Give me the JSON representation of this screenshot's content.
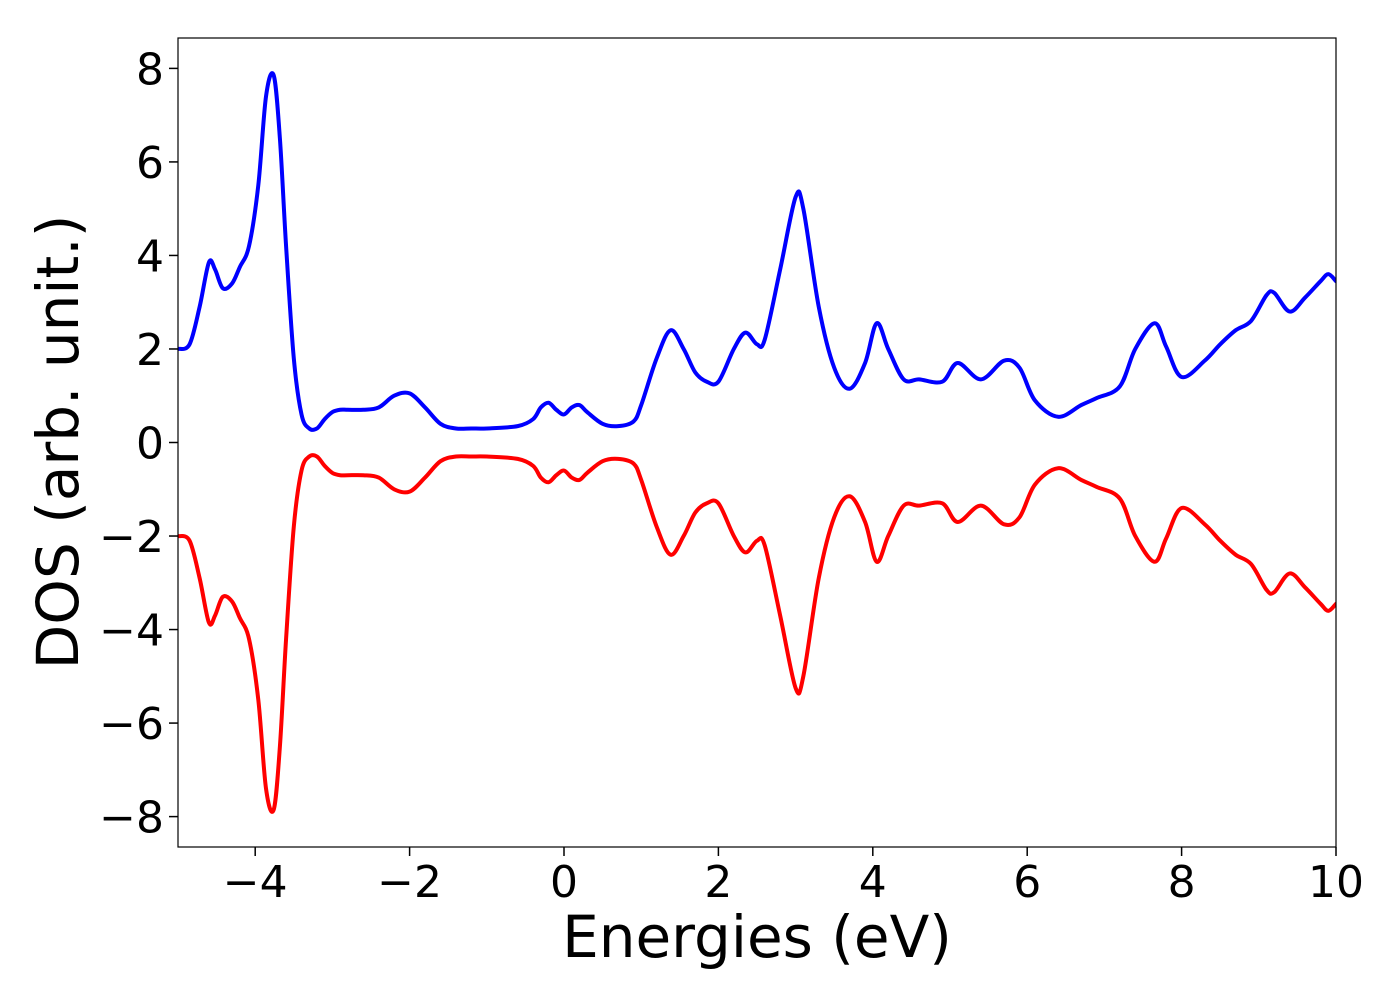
{
  "chart_data": {
    "type": "line",
    "title": "",
    "xlabel": "Energies (eV)",
    "ylabel": "DOS (arb. unit.)",
    "xlim": [
      -5,
      10
    ],
    "ylim": [
      -8.65,
      8.65
    ],
    "grid": false,
    "legend": "none",
    "x_ticks": [
      {
        "value": -4,
        "label": "−4"
      },
      {
        "value": -2,
        "label": "−2"
      },
      {
        "value": 0,
        "label": "0"
      },
      {
        "value": 2,
        "label": "2"
      },
      {
        "value": 4,
        "label": "4"
      },
      {
        "value": 6,
        "label": "6"
      },
      {
        "value": 8,
        "label": "8"
      },
      {
        "value": 10,
        "label": "10"
      }
    ],
    "y_ticks": [
      {
        "value": 8,
        "label": "8"
      },
      {
        "value": 6,
        "label": "6"
      },
      {
        "value": 4,
        "label": "4"
      },
      {
        "value": 2,
        "label": "2"
      },
      {
        "value": 0,
        "label": "0"
      },
      {
        "value": -2,
        "label": "−2"
      },
      {
        "value": -4,
        "label": "−4"
      },
      {
        "value": -6,
        "label": "−6"
      },
      {
        "value": -8,
        "label": "−8"
      }
    ],
    "series": [
      {
        "color": "#0000ff",
        "x": [
          -5.0,
          -4.85,
          -4.72,
          -4.6,
          -4.52,
          -4.42,
          -4.3,
          -4.2,
          -4.08,
          -3.96,
          -3.86,
          -3.76,
          -3.68,
          -3.6,
          -3.5,
          -3.4,
          -3.3,
          -3.2,
          -3.1,
          -3.0,
          -2.9,
          -2.8,
          -2.6,
          -2.4,
          -2.2,
          -2.0,
          -1.8,
          -1.6,
          -1.4,
          -1.2,
          -1.0,
          -0.6,
          -0.4,
          -0.3,
          -0.2,
          -0.1,
          0.0,
          0.1,
          0.2,
          0.3,
          0.5,
          0.7,
          0.9,
          1.0,
          1.2,
          1.38,
          1.55,
          1.7,
          1.85,
          2.0,
          2.2,
          2.35,
          2.5,
          2.6,
          2.8,
          3.0,
          3.1,
          3.3,
          3.5,
          3.7,
          3.9,
          4.05,
          4.2,
          4.4,
          4.6,
          4.9,
          5.1,
          5.4,
          5.7,
          5.9,
          6.1,
          6.4,
          6.7,
          6.9,
          7.2,
          7.4,
          7.65,
          7.8,
          8.0,
          8.3,
          8.5,
          8.7,
          8.9,
          9.1,
          9.2,
          9.4,
          9.6,
          9.8,
          9.9,
          10.0
        ],
        "values": [
          2.0,
          2.1,
          2.9,
          3.85,
          3.7,
          3.3,
          3.4,
          3.75,
          4.2,
          5.5,
          7.4,
          7.85,
          6.5,
          4.2,
          1.8,
          0.6,
          0.3,
          0.3,
          0.5,
          0.65,
          0.7,
          0.7,
          0.7,
          0.75,
          1.0,
          1.05,
          0.75,
          0.4,
          0.3,
          0.3,
          0.3,
          0.35,
          0.5,
          0.75,
          0.85,
          0.7,
          0.6,
          0.75,
          0.8,
          0.65,
          0.4,
          0.35,
          0.45,
          0.8,
          1.8,
          2.4,
          2.0,
          1.5,
          1.3,
          1.3,
          2.0,
          2.35,
          2.1,
          2.2,
          3.7,
          5.25,
          5.0,
          2.9,
          1.6,
          1.15,
          1.7,
          2.55,
          2.0,
          1.35,
          1.35,
          1.3,
          1.7,
          1.35,
          1.75,
          1.6,
          0.9,
          0.55,
          0.8,
          0.95,
          1.2,
          2.0,
          2.55,
          2.05,
          1.4,
          1.75,
          2.1,
          2.4,
          2.6,
          3.15,
          3.2,
          2.8,
          3.1,
          3.45,
          3.6,
          3.45
        ]
      },
      {
        "color": "#ff0000",
        "x": [
          -5.0,
          -4.85,
          -4.72,
          -4.6,
          -4.52,
          -4.42,
          -4.3,
          -4.2,
          -4.08,
          -3.96,
          -3.86,
          -3.76,
          -3.68,
          -3.6,
          -3.5,
          -3.4,
          -3.3,
          -3.2,
          -3.1,
          -3.0,
          -2.9,
          -2.8,
          -2.6,
          -2.4,
          -2.2,
          -2.0,
          -1.8,
          -1.6,
          -1.4,
          -1.2,
          -1.0,
          -0.6,
          -0.4,
          -0.3,
          -0.2,
          -0.1,
          0.0,
          0.1,
          0.2,
          0.3,
          0.5,
          0.7,
          0.9,
          1.0,
          1.2,
          1.38,
          1.55,
          1.7,
          1.85,
          2.0,
          2.2,
          2.35,
          2.5,
          2.6,
          2.8,
          3.0,
          3.1,
          3.3,
          3.5,
          3.7,
          3.9,
          4.05,
          4.2,
          4.4,
          4.6,
          4.9,
          5.1,
          5.4,
          5.7,
          5.9,
          6.1,
          6.4,
          6.7,
          6.9,
          7.2,
          7.4,
          7.65,
          7.8,
          8.0,
          8.3,
          8.5,
          8.7,
          8.9,
          9.1,
          9.2,
          9.4,
          9.6,
          9.8,
          9.9,
          10.0
        ],
        "values": [
          -2.0,
          -2.1,
          -2.9,
          -3.85,
          -3.7,
          -3.3,
          -3.4,
          -3.75,
          -4.2,
          -5.5,
          -7.4,
          -7.85,
          -6.5,
          -4.2,
          -1.8,
          -0.6,
          -0.3,
          -0.3,
          -0.5,
          -0.65,
          -0.7,
          -0.7,
          -0.7,
          -0.75,
          -1.0,
          -1.05,
          -0.75,
          -0.4,
          -0.3,
          -0.3,
          -0.3,
          -0.35,
          -0.5,
          -0.75,
          -0.85,
          -0.7,
          -0.6,
          -0.75,
          -0.8,
          -0.65,
          -0.4,
          -0.35,
          -0.45,
          -0.8,
          -1.8,
          -2.4,
          -2.0,
          -1.5,
          -1.3,
          -1.3,
          -2.0,
          -2.35,
          -2.1,
          -2.2,
          -3.7,
          -5.25,
          -5.0,
          -2.9,
          -1.6,
          -1.15,
          -1.7,
          -2.55,
          -2.0,
          -1.35,
          -1.35,
          -1.3,
          -1.7,
          -1.35,
          -1.75,
          -1.6,
          -0.9,
          -0.55,
          -0.8,
          -0.95,
          -1.2,
          -2.0,
          -2.55,
          -2.05,
          -1.4,
          -1.75,
          -2.1,
          -2.4,
          -2.6,
          -3.15,
          -3.2,
          -2.8,
          -3.1,
          -3.45,
          -3.6,
          -3.45
        ]
      }
    ]
  }
}
